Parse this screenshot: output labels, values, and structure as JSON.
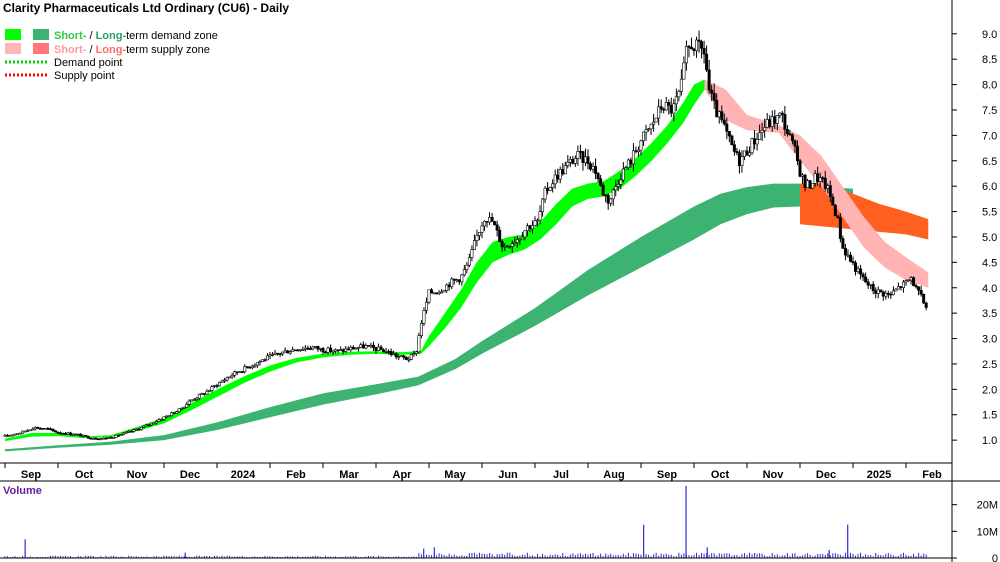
{
  "chart_data": {
    "type": "candlestick",
    "title": "Clarity Pharmaceuticals Ltd Ordinary (CU6) - Daily",
    "legend": [
      {
        "prefix": "Short-",
        "sep": " / ",
        "mid": "Long-",
        "suffix": "term demand zone",
        "colors": [
          "#00ff00",
          "#3cb371"
        ],
        "prefix_color": "#2ecc40",
        "mid_color": "#2e9e5b"
      },
      {
        "prefix": "Short-",
        "sep": " / ",
        "mid": "Long-",
        "suffix": "term supply zone",
        "colors": [
          "#ffb6b6",
          "#ff7777"
        ],
        "prefix_color": "#ff9999",
        "mid_color": "#ff6a6a"
      },
      {
        "label": "Demand point",
        "color": "#00cc00",
        "style": "dotted"
      },
      {
        "label": "Supply point",
        "color": "#ff0000",
        "style": "dotted"
      }
    ],
    "months": [
      "Sep",
      "Oct",
      "Nov",
      "Dec",
      "2024",
      "Feb",
      "Mar",
      "Apr",
      "May",
      "Jun",
      "Jul",
      "Aug",
      "Sep",
      "Oct",
      "Nov",
      "Dec",
      "2025",
      "Feb"
    ],
    "x_range": [
      0,
      17.2
    ],
    "price_axis": {
      "ticks": [
        "1.0",
        "1.5",
        "2.0",
        "2.5",
        "3.0",
        "3.5",
        "4.0",
        "4.5",
        "5.0",
        "5.5",
        "6.0",
        "6.5",
        "7.0",
        "7.5",
        "8.0",
        "8.5",
        "9.0"
      ],
      "ylim": [
        0.55,
        9.35
      ]
    },
    "volume_axis": {
      "title": "Volume",
      "ticks": [
        "0",
        "10M",
        "20M"
      ],
      "tick_values": [
        0,
        10,
        20
      ],
      "ylim": [
        0,
        27
      ],
      "unit": "M"
    },
    "price_path": [
      [
        0.0,
        1.08
      ],
      [
        0.3,
        1.15
      ],
      [
        0.55,
        1.25
      ],
      [
        0.8,
        1.22
      ],
      [
        1.0,
        1.15
      ],
      [
        1.3,
        1.12
      ],
      [
        1.6,
        1.05
      ],
      [
        1.85,
        1.03
      ],
      [
        2.1,
        1.08
      ],
      [
        2.4,
        1.18
      ],
      [
        2.7,
        1.3
      ],
      [
        3.0,
        1.45
      ],
      [
        3.3,
        1.6
      ],
      [
        3.5,
        1.78
      ],
      [
        3.8,
        1.95
      ],
      [
        4.0,
        2.1
      ],
      [
        4.3,
        2.3
      ],
      [
        4.6,
        2.45
      ],
      [
        4.9,
        2.6
      ],
      [
        5.2,
        2.72
      ],
      [
        5.5,
        2.8
      ],
      [
        5.8,
        2.83
      ],
      [
        6.0,
        2.78
      ],
      [
        6.3,
        2.75
      ],
      [
        6.5,
        2.8
      ],
      [
        6.8,
        2.85
      ],
      [
        7.0,
        2.8
      ],
      [
        7.2,
        2.75
      ],
      [
        7.4,
        2.65
      ],
      [
        7.6,
        2.6
      ],
      [
        7.75,
        2.7
      ],
      [
        7.85,
        3.3
      ],
      [
        8.0,
        3.9
      ],
      [
        8.2,
        3.95
      ],
      [
        8.4,
        4.1
      ],
      [
        8.6,
        4.2
      ],
      [
        8.75,
        4.5
      ],
      [
        8.9,
        5.0
      ],
      [
        9.05,
        5.4
      ],
      [
        9.2,
        5.3
      ],
      [
        9.4,
        4.8
      ],
      [
        9.55,
        4.9
      ],
      [
        9.7,
        5.0
      ],
      [
        9.85,
        5.2
      ],
      [
        10.05,
        5.3
      ],
      [
        10.2,
        5.9
      ],
      [
        10.4,
        6.2
      ],
      [
        10.6,
        6.4
      ],
      [
        10.8,
        6.6
      ],
      [
        11.0,
        6.5
      ],
      [
        11.15,
        6.3
      ],
      [
        11.25,
        5.95
      ],
      [
        11.4,
        5.7
      ],
      [
        11.6,
        6.2
      ],
      [
        11.8,
        6.5
      ],
      [
        12.0,
        6.9
      ],
      [
        12.2,
        7.2
      ],
      [
        12.4,
        7.6
      ],
      [
        12.6,
        7.5
      ],
      [
        12.75,
        7.9
      ],
      [
        12.85,
        8.6
      ],
      [
        12.95,
        8.8
      ],
      [
        13.1,
        8.7
      ],
      [
        13.2,
        8.65
      ],
      [
        13.28,
        7.9
      ],
      [
        13.4,
        7.5
      ],
      [
        13.55,
        7.2
      ],
      [
        13.7,
        6.8
      ],
      [
        13.85,
        6.5
      ],
      [
        14.0,
        6.7
      ],
      [
        14.2,
        7.0
      ],
      [
        14.35,
        7.2
      ],
      [
        14.5,
        7.3
      ],
      [
        14.65,
        7.4
      ],
      [
        14.75,
        7.1
      ],
      [
        14.9,
        6.7
      ],
      [
        15.0,
        6.3
      ],
      [
        15.1,
        6.0
      ],
      [
        15.2,
        6.05
      ],
      [
        15.3,
        6.2
      ],
      [
        15.4,
        6.1
      ],
      [
        15.5,
        6.0
      ],
      [
        15.6,
        5.7
      ],
      [
        15.7,
        5.4
      ],
      [
        15.8,
        4.8
      ],
      [
        15.95,
        4.55
      ],
      [
        16.1,
        4.3
      ],
      [
        16.25,
        4.1
      ],
      [
        16.4,
        3.95
      ],
      [
        16.55,
        3.9
      ],
      [
        16.7,
        3.85
      ],
      [
        16.85,
        4.0
      ],
      [
        17.0,
        4.1
      ],
      [
        17.1,
        4.2
      ],
      [
        17.2,
        3.95
      ],
      [
        17.32,
        3.75
      ],
      [
        17.42,
        3.55
      ]
    ],
    "short_demand_zone": [
      [
        0.0,
        0.98,
        1.03
      ],
      [
        0.5,
        1.07,
        1.14
      ],
      [
        1.0,
        1.08,
        1.14
      ],
      [
        1.5,
        1.04,
        1.07
      ],
      [
        2.0,
        1.06,
        1.1
      ],
      [
        2.5,
        1.18,
        1.26
      ],
      [
        3.0,
        1.33,
        1.44
      ],
      [
        3.5,
        1.58,
        1.72
      ],
      [
        4.0,
        1.85,
        2.0
      ],
      [
        4.5,
        2.12,
        2.25
      ],
      [
        5.0,
        2.35,
        2.47
      ],
      [
        5.5,
        2.53,
        2.62
      ],
      [
        6.0,
        2.63,
        2.7
      ],
      [
        6.5,
        2.68,
        2.74
      ],
      [
        7.0,
        2.7,
        2.75
      ],
      [
        7.5,
        2.68,
        2.73
      ],
      [
        7.85,
        2.7,
        2.76
      ],
      [
        8.0,
        2.85,
        3.05
      ],
      [
        8.3,
        3.2,
        3.5
      ],
      [
        8.6,
        3.6,
        3.95
      ],
      [
        8.9,
        4.1,
        4.5
      ],
      [
        9.2,
        4.5,
        4.9
      ],
      [
        9.5,
        4.65,
        5.0
      ],
      [
        9.8,
        4.75,
        5.05
      ],
      [
        10.1,
        4.95,
        5.3
      ],
      [
        10.4,
        5.25,
        5.65
      ],
      [
        10.7,
        5.6,
        5.95
      ],
      [
        11.0,
        5.75,
        6.05
      ],
      [
        11.3,
        5.8,
        6.1
      ],
      [
        11.6,
        5.95,
        6.3
      ],
      [
        11.9,
        6.2,
        6.55
      ],
      [
        12.2,
        6.5,
        6.85
      ],
      [
        12.5,
        6.85,
        7.2
      ],
      [
        12.8,
        7.25,
        7.65
      ],
      [
        13.0,
        7.6,
        8.0
      ],
      [
        13.2,
        7.9,
        8.1
      ]
    ],
    "long_demand_zone": [
      [
        0.0,
        0.78,
        0.82
      ],
      [
        1.0,
        0.85,
        0.9
      ],
      [
        2.0,
        0.91,
        0.97
      ],
      [
        3.0,
        1.0,
        1.1
      ],
      [
        4.0,
        1.2,
        1.35
      ],
      [
        5.0,
        1.45,
        1.65
      ],
      [
        6.0,
        1.7,
        1.92
      ],
      [
        7.0,
        1.9,
        2.1
      ],
      [
        7.8,
        2.08,
        2.25
      ],
      [
        8.5,
        2.4,
        2.6
      ],
      [
        9.0,
        2.7,
        2.95
      ],
      [
        10.0,
        3.25,
        3.6
      ],
      [
        11.0,
        3.85,
        4.35
      ],
      [
        12.0,
        4.4,
        5.0
      ],
      [
        13.0,
        4.95,
        5.6
      ],
      [
        13.5,
        5.25,
        5.85
      ],
      [
        14.0,
        5.45,
        5.98
      ],
      [
        14.5,
        5.58,
        6.05
      ],
      [
        15.0,
        5.6,
        6.05
      ],
      [
        15.3,
        5.55,
        6.0
      ],
      [
        15.6,
        5.55,
        5.98
      ],
      [
        16.0,
        5.55,
        5.95
      ]
    ],
    "short_supply_zone": [
      [
        13.2,
        7.9,
        8.1
      ],
      [
        13.6,
        7.3,
        7.9
      ],
      [
        14.0,
        7.1,
        7.4
      ],
      [
        14.6,
        7.05,
        7.2
      ],
      [
        15.0,
        6.5,
        7.0
      ],
      [
        15.4,
        6.0,
        6.6
      ],
      [
        15.8,
        5.4,
        6.0
      ],
      [
        16.2,
        4.8,
        5.4
      ],
      [
        16.6,
        4.4,
        4.9
      ],
      [
        17.0,
        4.15,
        4.6
      ],
      [
        17.42,
        4.0,
        4.3
      ]
    ],
    "long_supply_zone": [
      [
        15.0,
        5.25,
        6.05
      ],
      [
        15.5,
        5.2,
        6.05
      ],
      [
        16.0,
        5.15,
        5.85
      ],
      [
        16.5,
        5.1,
        5.65
      ],
      [
        17.0,
        5.05,
        5.5
      ],
      [
        17.42,
        4.95,
        5.35
      ]
    ],
    "volume_spikes": [
      [
        0.38,
        7.0
      ],
      [
        3.4,
        2.0
      ],
      [
        7.9,
        3.5
      ],
      [
        8.1,
        4.0
      ],
      [
        12.05,
        12.5
      ],
      [
        12.85,
        27.0
      ],
      [
        13.25,
        4.0
      ],
      [
        15.9,
        12.5
      ],
      [
        15.55,
        3.0
      ]
    ],
    "colors": {
      "short_demand": "#00ff00",
      "long_demand": "#3cb371",
      "short_supply": "#ffb3b3",
      "long_supply": "#ff5f1f",
      "candle": "#000000",
      "volume": "#2b2bd6",
      "grid": "#bbbbbb"
    }
  }
}
